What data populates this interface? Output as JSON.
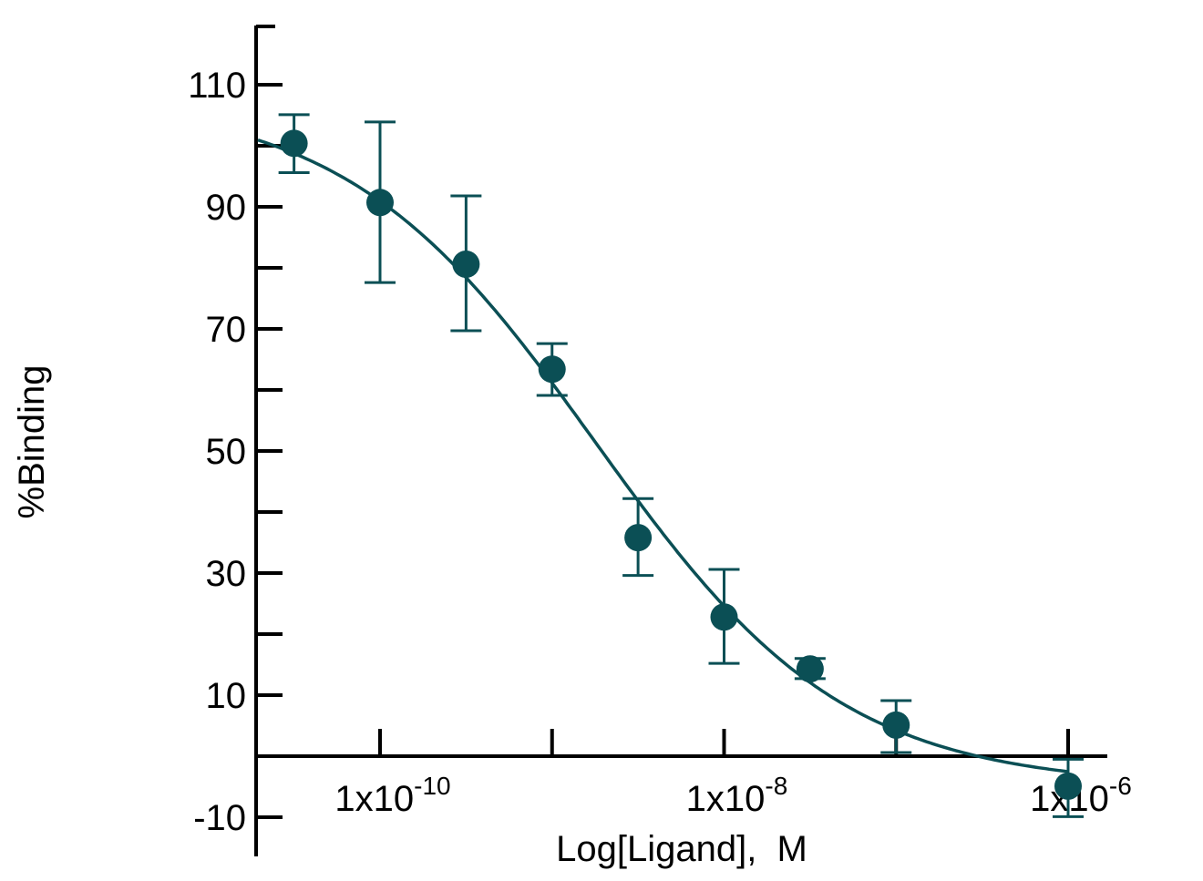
{
  "chart_data": {
    "type": "scatter",
    "title": "",
    "xlabel": "Log[Ligand],  M",
    "ylabel": "%Binding",
    "x_scale": "log",
    "xlim_log10": [
      -10.72,
      -5.77
    ],
    "ylim": [
      -20,
      120
    ],
    "x_ticks": [
      {
        "log10": -10,
        "base": "1x10",
        "exp": "-10",
        "labeled": true
      },
      {
        "log10": -9,
        "labeled": false
      },
      {
        "log10": -8,
        "base": "1x10",
        "exp": "-8",
        "labeled": true
      },
      {
        "log10": -7,
        "labeled": false
      },
      {
        "log10": -6,
        "base": "1x10",
        "exp": "-6",
        "labeled": true
      }
    ],
    "y_ticks": [
      {
        "value": 110,
        "label": "110"
      },
      {
        "value": 100,
        "label": ""
      },
      {
        "value": 90,
        "label": "90"
      },
      {
        "value": 80,
        "label": ""
      },
      {
        "value": 70,
        "label": "70"
      },
      {
        "value": 60,
        "label": ""
      },
      {
        "value": 50,
        "label": "50"
      },
      {
        "value": 40,
        "label": ""
      },
      {
        "value": 30,
        "label": "30"
      },
      {
        "value": 20,
        "label": ""
      },
      {
        "value": 10,
        "label": "10"
      },
      {
        "value": -10,
        "label": "-10"
      }
    ],
    "grid": false,
    "color": "#0b4f55",
    "series": [
      {
        "name": "Binding",
        "points": [
          {
            "log10x": -10.5,
            "y": 100.4,
            "err_hi": 105.1,
            "err_lo": 95.6
          },
          {
            "log10x": -10.0,
            "y": 90.7,
            "err_hi": 103.9,
            "err_lo": 77.6
          },
          {
            "log10x": -9.5,
            "y": 80.6,
            "err_hi": 91.8,
            "err_lo": 69.7
          },
          {
            "log10x": -9.0,
            "y": 63.4,
            "err_hi": 67.6,
            "err_lo": 59.1
          },
          {
            "log10x": -8.5,
            "y": 35.8,
            "err_hi": 42.2,
            "err_lo": 29.6
          },
          {
            "log10x": -8.0,
            "y": 22.8,
            "err_hi": 30.6,
            "err_lo": 15.2
          },
          {
            "log10x": -7.5,
            "y": 14.3,
            "err_hi": 16.0,
            "err_lo": 12.7
          },
          {
            "log10x": -7.0,
            "y": 5.1,
            "err_hi": 9.1,
            "err_lo": 0.6
          },
          {
            "log10x": -6.0,
            "y": -4.9,
            "err_hi": -0.5,
            "err_lo": -9.9
          }
        ]
      }
    ]
  }
}
